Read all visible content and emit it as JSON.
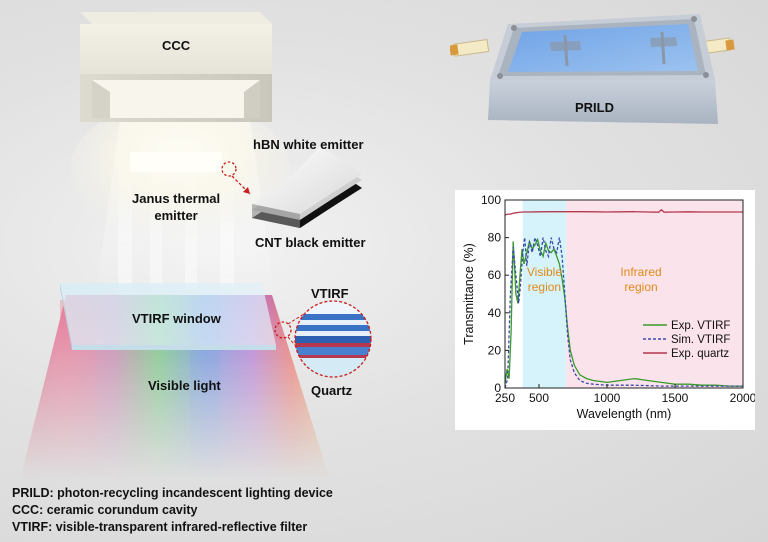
{
  "labels": {
    "ccc": "CCC",
    "prild": "PRILD",
    "hbn": "hBN white emitter",
    "janus": "Janus thermal\nemitter",
    "cnt": "CNT black emitter",
    "vtirf": "VTIRF",
    "window": "VTIRF window",
    "visible_light": "Visible light",
    "quartz": "Quartz"
  },
  "legend_lines": [
    "PRILD: photon-recycling incandescent lighting device",
    "CCC: ceramic  corundum  cavity",
    "VTIRF: visible-transparent infrared-reflective filter"
  ],
  "colors": {
    "visible_region": "#d6f2fb",
    "infrared_region": "#fbe3ec",
    "exp_vtirf": "#3a9a2a",
    "sim_vtirf": "#3a4aa8",
    "exp_quartz": "#b5384f",
    "region_text": "#e08a1a"
  },
  "chart_data": {
    "type": "line",
    "xlabel": "Wavelength (nm)",
    "ylabel": "Transmittance (%)",
    "xlim": [
      250,
      2000
    ],
    "ylim": [
      0,
      100
    ],
    "xticks": [
      250,
      500,
      1000,
      1500,
      2000
    ],
    "yticks": [
      0,
      20,
      40,
      60,
      80,
      100
    ],
    "regions": [
      {
        "label": "Visible\nregion",
        "x": [
          380,
          700
        ]
      },
      {
        "label": "Infrared\nregion",
        "x": [
          700,
          2000
        ]
      }
    ],
    "legend_position": "right",
    "series": [
      {
        "name": "Exp. VTIRF",
        "style": "solid",
        "x": [
          250,
          265,
          280,
          295,
          310,
          330,
          345,
          360,
          375,
          390,
          410,
          430,
          450,
          470,
          490,
          510,
          530,
          550,
          570,
          590,
          610,
          630,
          650,
          670,
          690,
          710,
          730,
          760,
          800,
          850,
          900,
          1000,
          1100,
          1200,
          1300,
          1400,
          1500,
          1600,
          1700,
          1800,
          1900,
          2000
        ],
        "y": [
          2,
          10,
          5,
          30,
          78,
          50,
          45,
          60,
          74,
          66,
          72,
          78,
          74,
          76,
          79,
          73,
          70,
          77,
          73,
          72,
          74,
          70,
          66,
          58,
          48,
          32,
          20,
          12,
          7,
          5,
          4,
          3,
          4,
          5,
          4,
          3,
          2,
          2,
          1.5,
          1.5,
          1,
          1
        ]
      },
      {
        "name": "Sim. VTIRF",
        "style": "dashed",
        "x": [
          250,
          270,
          290,
          310,
          330,
          350,
          365,
          380,
          395,
          410,
          430,
          450,
          470,
          490,
          510,
          530,
          550,
          570,
          590,
          610,
          630,
          650,
          670,
          690,
          710,
          730,
          760,
          800,
          850,
          900,
          1000,
          1200,
          1400,
          1600,
          1800,
          2000
        ],
        "y": [
          0,
          5,
          50,
          75,
          60,
          45,
          55,
          72,
          80,
          65,
          78,
          72,
          80,
          76,
          70,
          80,
          73,
          70,
          80,
          74,
          72,
          80,
          70,
          50,
          28,
          15,
          8,
          4,
          2.5,
          2,
          1.5,
          1.5,
          1,
          1,
          1,
          1
        ]
      },
      {
        "name": "Exp. quartz",
        "style": "solid",
        "x": [
          250,
          270,
          290,
          310,
          330,
          350,
          380,
          420,
          500,
          600,
          700,
          800,
          900,
          1000,
          1100,
          1200,
          1300,
          1380,
          1400,
          1420,
          1500,
          1600,
          1700,
          1800,
          1900,
          2000
        ],
        "y": [
          92,
          92.5,
          92.5,
          93,
          93.2,
          93.4,
          93.6,
          93.6,
          93.7,
          93.8,
          93.8,
          93.8,
          93.7,
          93.6,
          93.7,
          93.8,
          93.6,
          93.5,
          94.8,
          93.5,
          93.6,
          93.7,
          93.6,
          93.6,
          93.6,
          93.6
        ]
      }
    ]
  }
}
